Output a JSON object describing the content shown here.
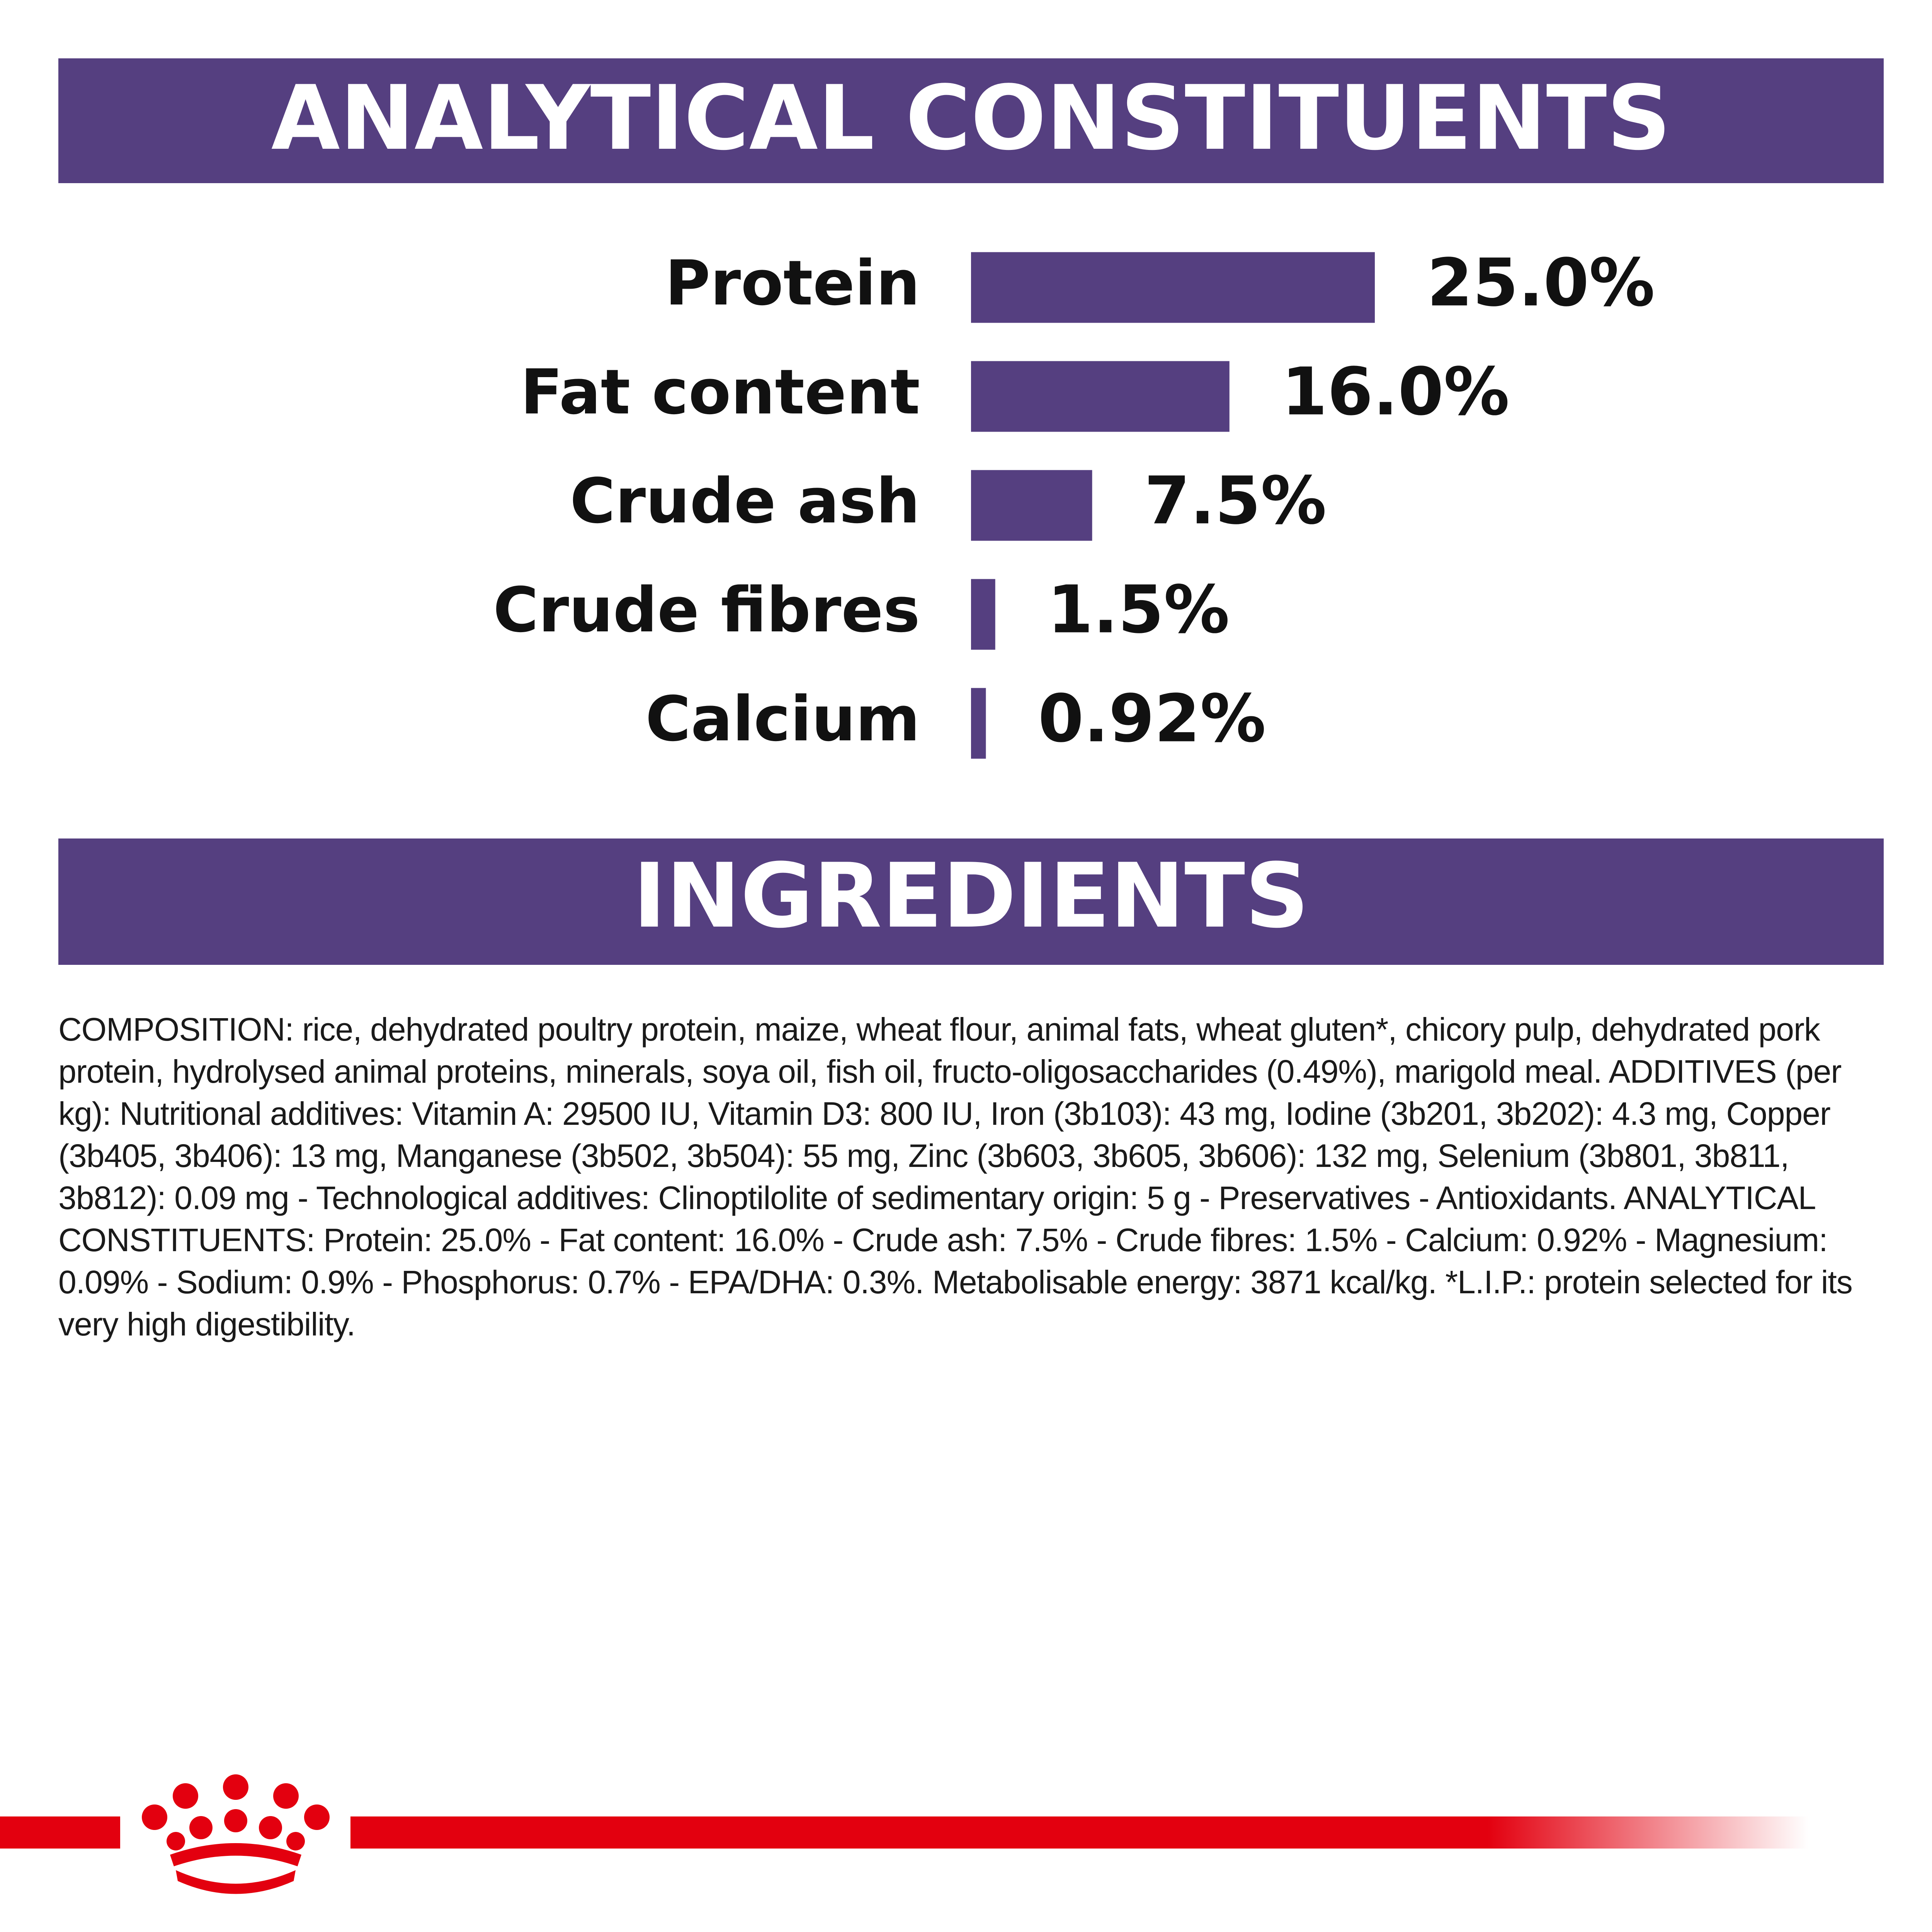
{
  "chart_data": {
    "type": "bar",
    "orientation": "horizontal",
    "title": "ANALYTICAL CONSTITUENTS",
    "categories": [
      "Protein",
      "Fat content",
      "Crude ash",
      "Crude fibres",
      "Calcium"
    ],
    "values": [
      25.0,
      16.0,
      7.5,
      1.5,
      0.92
    ],
    "value_labels": [
      "25.0%",
      "16.0%",
      "7.5%",
      "1.5%",
      "0.92%"
    ],
    "color": "#553f80"
  },
  "ingredients": {
    "title": "INGREDIENTS",
    "text": "COMPOSITION: rice, dehydrated poultry protein, maize, wheat flour, animal fats, wheat gluten*, chicory pulp, dehydrated pork protein, hydrolysed animal proteins, minerals, soya oil, fish oil, fructo-oligosaccharides (0.49%), marigold meal. ADDITIVES (per kg): Nutritional additives: Vitamin A: 29500 IU, Vitamin D3: 800 IU, Iron (3b103): 43 mg, Iodine (3b201, 3b202): 4.3 mg, Copper (3b405, 3b406): 13 mg, Manganese (3b502, 3b504): 55 mg, Zinc (3b603, 3b605, 3b606): 132 mg, Selenium (3b801, 3b811, 3b812): 0.09 mg - Technological additives: Clinoptilolite of sedimentary origin: 5 g - Preservatives - Antioxidants. ANALYTICAL CONSTITUENTS: Protein: 25.0% - Fat content: 16.0% - Crude ash: 7.5% - Crude fibres: 1.5% - Calcium: 0.92% - Magnesium: 0.09% - Sodium: 0.9% - Phosphorus: 0.7% - EPA/DHA: 0.3%. Metabolisable energy: 3871 kcal/kg. *L.I.P.: protein selected for its very high digestibility."
  }
}
